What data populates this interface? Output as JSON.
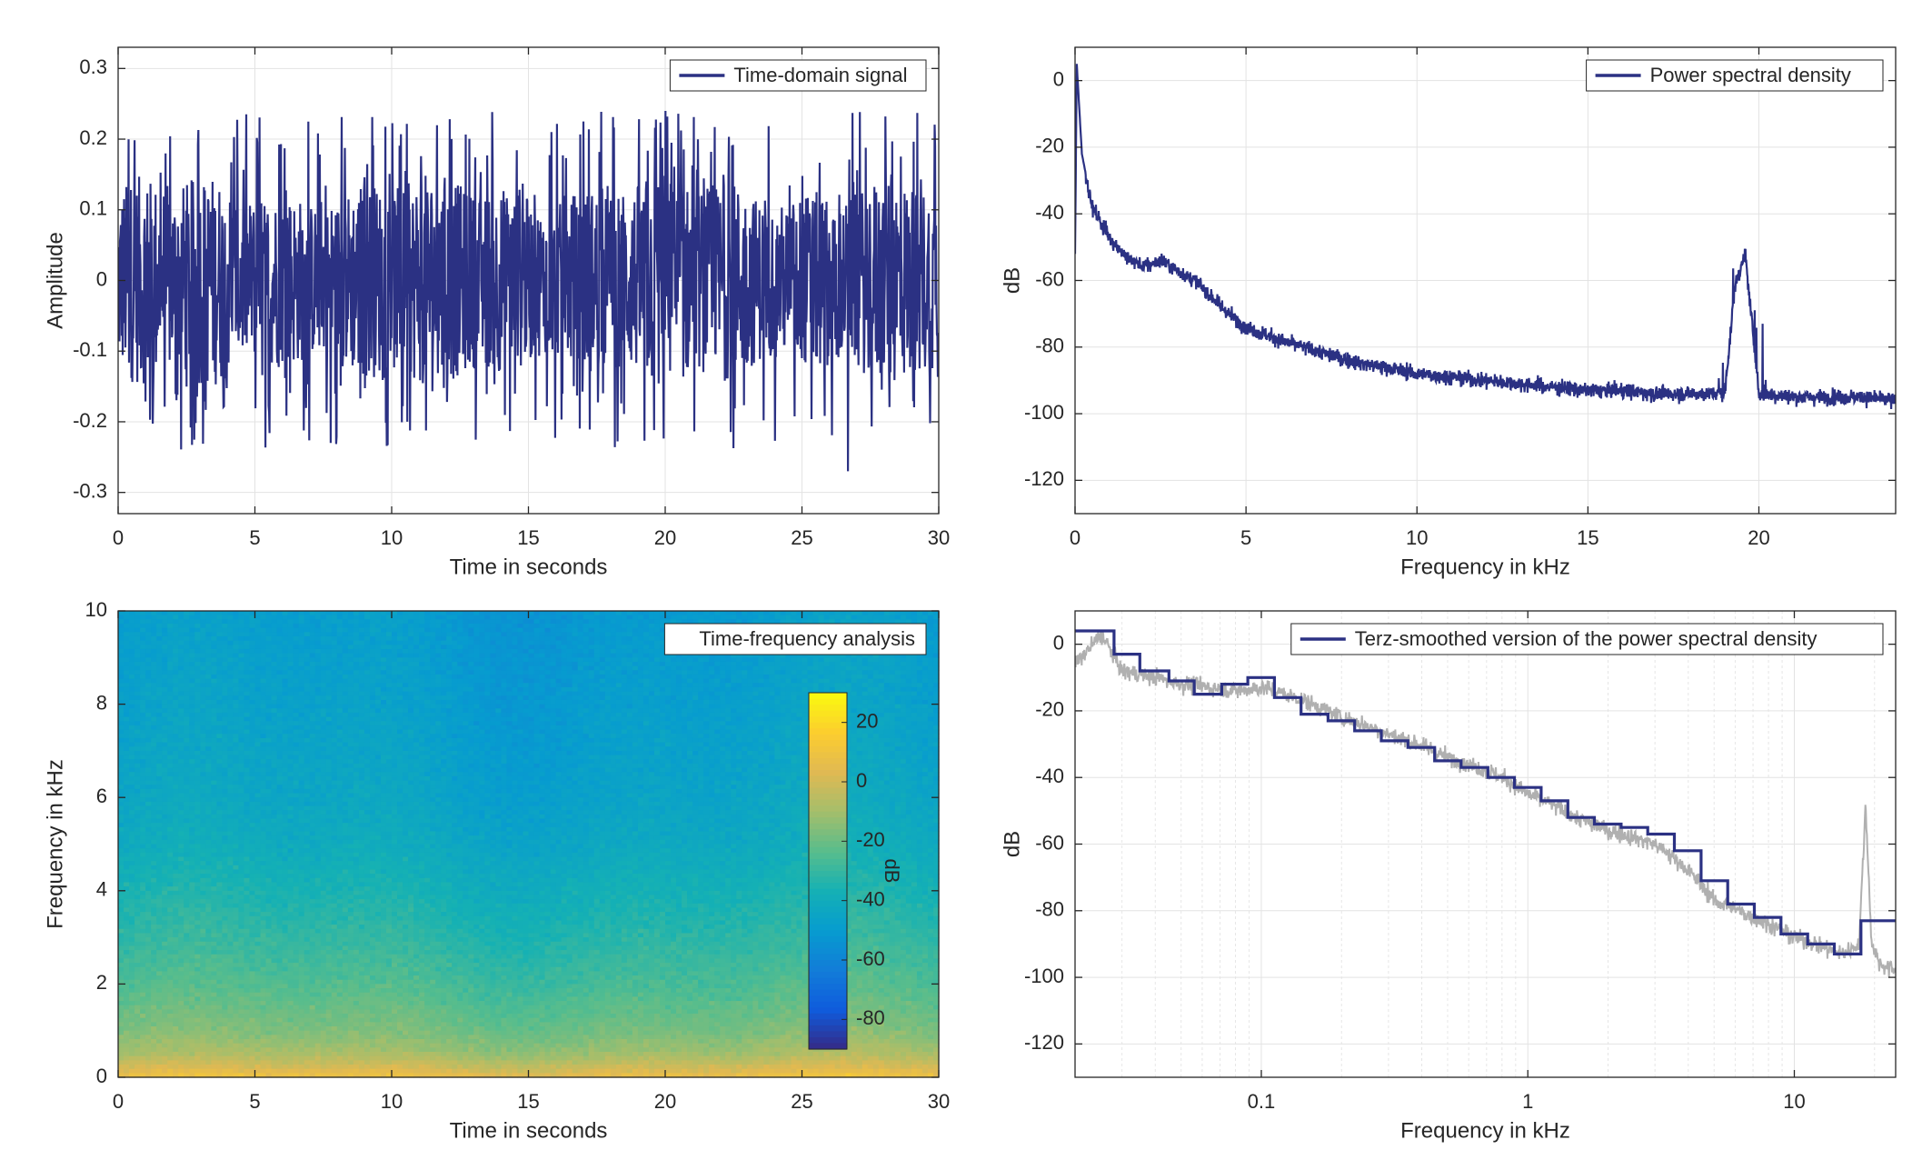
{
  "figure": {
    "line_color": "#2b3183",
    "gray_color": "#b0b0b0",
    "grid_color": "#e3e3e3",
    "axis_color": "#262626"
  },
  "chart_data": [
    {
      "id": "time",
      "type": "line",
      "title": "",
      "xlabel": "Time in seconds",
      "ylabel": "Amplitude",
      "xlim": [
        0,
        30
      ],
      "ylim": [
        -0.33,
        0.33
      ],
      "xticks": [
        0,
        5,
        10,
        15,
        20,
        25,
        30
      ],
      "xtick_labels": [
        "0",
        "5",
        "10",
        "15",
        "20",
        "25",
        "30"
      ],
      "yticks": [
        -0.3,
        -0.2,
        -0.1,
        0,
        0.1,
        0.2,
        0.3
      ],
      "ytick_labels": [
        "-0.3",
        "-0.2",
        "-0.1",
        "0",
        "0.1",
        "0.2",
        "0.3"
      ],
      "grid": true,
      "legend_position": "top-right",
      "series": [
        {
          "name": "Time-domain signal",
          "color": "#2b3183",
          "description_stats": {
            "typical_envelope": 0.13,
            "peak_max": 0.24,
            "peak_min": -0.27
          }
        }
      ]
    },
    {
      "id": "psd",
      "type": "line",
      "title": "",
      "xlabel": "Frequency in kHz",
      "ylabel": "dB",
      "xlim": [
        0,
        24
      ],
      "ylim": [
        -130,
        10
      ],
      "xticks": [
        0,
        5,
        10,
        15,
        20
      ],
      "xtick_labels": [
        "0",
        "5",
        "10",
        "15",
        "20"
      ],
      "yticks": [
        -120,
        -100,
        -80,
        -60,
        -40,
        -20,
        0
      ],
      "ytick_labels": [
        "-120",
        "-100",
        "-80",
        "-60",
        "-40",
        "-20",
        "0"
      ],
      "grid": true,
      "legend_position": "top-right",
      "series": [
        {
          "name": "Power spectral density",
          "color": "#2b3183",
          "x": [
            0,
            0.05,
            0.2,
            0.5,
            1,
            1.5,
            2,
            2.5,
            3,
            3.5,
            4,
            4.5,
            5,
            6,
            7,
            8,
            9,
            10,
            11,
            12,
            13,
            14,
            15,
            16,
            17,
            18,
            19,
            19.3,
            19.6,
            20,
            21,
            22,
            23,
            24
          ],
          "y": [
            -52,
            5,
            -22,
            -38,
            -47,
            -53,
            -56,
            -54,
            -57,
            -60,
            -65,
            -70,
            -74,
            -78,
            -81,
            -84,
            -86,
            -88,
            -89,
            -90,
            -91,
            -92,
            -93,
            -93,
            -94,
            -94,
            -94,
            -62,
            -52,
            -94,
            -95,
            -95,
            -95,
            -96
          ]
        }
      ]
    },
    {
      "id": "spectrogram",
      "type": "heatmap",
      "title": "",
      "xlabel": "Time in seconds",
      "ylabel": "Frequency in kHz",
      "xlim": [
        0,
        30
      ],
      "ylim": [
        0,
        10
      ],
      "xticks": [
        0,
        5,
        10,
        15,
        20,
        25,
        30
      ],
      "xtick_labels": [
        "0",
        "5",
        "10",
        "15",
        "20",
        "25",
        "30"
      ],
      "yticks": [
        0,
        2,
        4,
        6,
        8,
        10
      ],
      "ytick_labels": [
        "0",
        "2",
        "4",
        "6",
        "8",
        "10"
      ],
      "legend_position": "top-right",
      "legend_text": "Time-frequency analysis",
      "colorbar": {
        "label": "dB",
        "range": [
          -90,
          30
        ],
        "ticks": [
          -80,
          -60,
          -40,
          -20,
          0,
          20
        ],
        "tick_labels": [
          "-80",
          "-60",
          "-40",
          "-20",
          "0",
          "20"
        ],
        "colormap": "parula"
      },
      "level_profile": {
        "freq_kHz": [
          0,
          0.2,
          0.5,
          1,
          2,
          3,
          4,
          5,
          6,
          8,
          10
        ],
        "dB": [
          8,
          0,
          -10,
          -18,
          -26,
          -32,
          -37,
          -42,
          -45,
          -48,
          -50
        ]
      }
    },
    {
      "id": "terz",
      "type": "line",
      "title": "",
      "xlabel": "Frequency in kHz",
      "ylabel": "dB",
      "xscale": "log",
      "xlim": [
        0.02,
        24
      ],
      "ylim": [
        -130,
        10
      ],
      "xticks": [
        0.1,
        1,
        10
      ],
      "xtick_labels": [
        "0.1",
        "1",
        "10"
      ],
      "yticks": [
        -120,
        -100,
        -80,
        -60,
        -40,
        -20,
        0
      ],
      "ytick_labels": [
        "-120",
        "-100",
        "-80",
        "-60",
        "-40",
        "-20",
        "0"
      ],
      "grid": true,
      "legend_position": "top-right",
      "series": [
        {
          "name": "",
          "color": "#b0b0b0",
          "x": [
            0.02,
            0.025,
            0.03,
            0.05,
            0.08,
            0.1,
            0.2,
            0.3,
            0.5,
            0.8,
            1,
            1.5,
            2,
            3,
            4,
            5,
            7,
            10,
            15,
            17.5,
            18.5,
            19.5,
            21,
            24
          ],
          "y": [
            -6,
            3,
            -8,
            -12,
            -14,
            -13,
            -22,
            -27,
            -34,
            -40,
            -45,
            -52,
            -56,
            -60,
            -68,
            -77,
            -82,
            -88,
            -93,
            -90,
            -48,
            -90,
            -96,
            -98
          ]
        },
        {
          "name": "Terz-smoothed version of the power spectral density",
          "color": "#2b3183",
          "type": "step",
          "edges_kHz": [
            0.02,
            0.028,
            0.035,
            0.045,
            0.056,
            0.071,
            0.089,
            0.112,
            0.141,
            0.178,
            0.224,
            0.282,
            0.355,
            0.447,
            0.562,
            0.708,
            0.891,
            1.122,
            1.413,
            1.778,
            2.239,
            2.818,
            3.548,
            4.467,
            5.623,
            7.079,
            8.913,
            11.22,
            14.13,
            17.78,
            24
          ],
          "values_dB": [
            4,
            -3,
            -8,
            -11,
            -15,
            -12,
            -10,
            -16,
            -21,
            -23,
            -26,
            -29,
            -31,
            -35,
            -37,
            -40,
            -43,
            -47,
            -52,
            -54,
            -55,
            -57,
            -62,
            -71,
            -78,
            -82,
            -87,
            -90,
            -93,
            -83
          ]
        }
      ]
    }
  ]
}
